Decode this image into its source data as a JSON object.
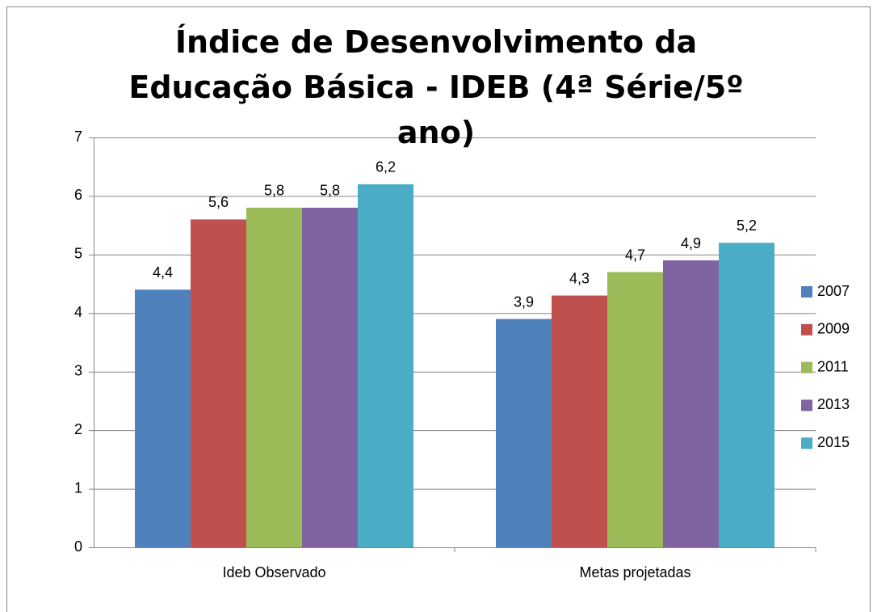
{
  "chart_data": {
    "type": "bar",
    "title": "Índice de Desenvolvimento da Educação Básica - IDEB (4ª Série/5º ano)",
    "categories": [
      "Ideb Observado",
      "Metas projetadas"
    ],
    "series": [
      {
        "name": "2007",
        "color": "#4f81bd",
        "values": [
          4.4,
          3.9
        ],
        "value_labels": [
          "4,4",
          "3,9"
        ]
      },
      {
        "name": "2009",
        "color": "#c0504d",
        "values": [
          5.6,
          4.3
        ],
        "value_labels": [
          "5,6",
          "4,3"
        ]
      },
      {
        "name": "2011",
        "color": "#9bbb59",
        "values": [
          5.8,
          4.7
        ],
        "value_labels": [
          "5,8",
          "4,7"
        ]
      },
      {
        "name": "2013",
        "color": "#8064a2",
        "values": [
          5.8,
          4.9
        ],
        "value_labels": [
          "5,8",
          "4,9"
        ]
      },
      {
        "name": "2015",
        "color": "#4bacc6",
        "values": [
          6.2,
          5.2
        ],
        "value_labels": [
          "6,2",
          "5,2"
        ]
      }
    ],
    "ylim": [
      0,
      7
    ],
    "yticks": [
      0,
      1,
      2,
      3,
      4,
      5,
      6,
      7
    ],
    "grid": true,
    "legend": "right"
  }
}
